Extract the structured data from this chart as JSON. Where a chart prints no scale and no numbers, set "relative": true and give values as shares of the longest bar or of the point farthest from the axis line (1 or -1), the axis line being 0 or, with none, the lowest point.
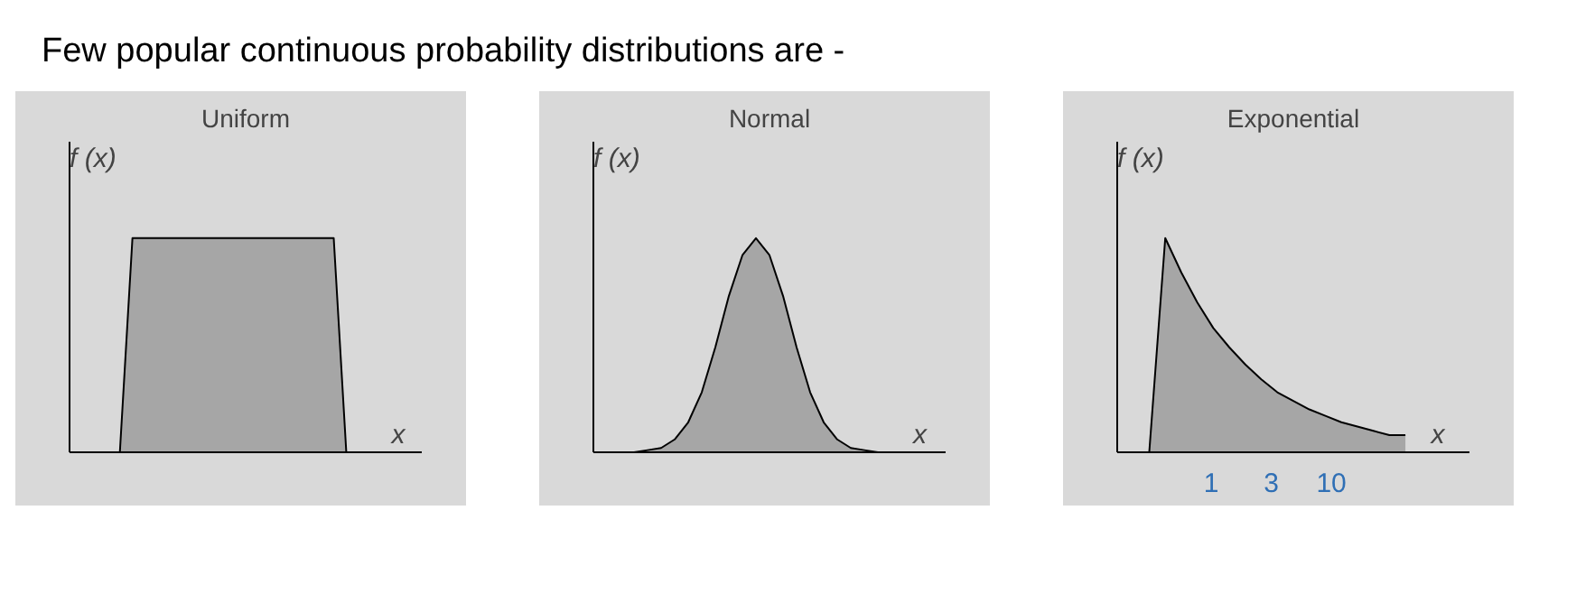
{
  "chart_data": [
    {
      "type": "area",
      "title": "Uniform",
      "xlabel": "x",
      "ylabel": "f (x)",
      "relative": true,
      "annotations": [
        "Few popular continuous probability distributions are -"
      ],
      "categories": [
        null,
        null,
        null,
        null,
        null,
        null,
        null,
        null,
        null,
        null,
        null,
        null,
        null,
        null,
        null,
        null,
        null,
        null,
        null,
        null,
        null,
        null,
        null
      ],
      "series": [
        {
          "color": "#a6a6a6",
          "values": [
            0,
            0,
            0,
            1,
            1,
            1,
            1,
            1,
            1,
            1,
            1,
            1,
            1,
            1,
            1,
            1,
            1,
            1,
            1,
            1,
            0,
            0,
            0
          ]
        }
      ]
    },
    {
      "type": "area",
      "title": "Normal",
      "xlabel": "x",
      "ylabel": "f (x)",
      "relative": true,
      "categories": [
        null,
        null,
        null,
        null,
        null,
        null,
        null,
        null,
        null,
        null,
        null,
        null,
        null,
        null,
        null,
        null,
        null,
        null,
        null,
        null,
        null
      ],
      "series": [
        {
          "color": "#a6a6a6",
          "values": [
            0,
            0,
            0.01,
            0.02,
            0.06,
            0.14,
            0.28,
            0.49,
            0.73,
            0.92,
            1,
            0.92,
            0.73,
            0.49,
            0.28,
            0.14,
            0.06,
            0.02,
            0.01,
            0,
            0
          ]
        }
      ]
    },
    {
      "type": "area",
      "title": "Exponential",
      "xlabel": "x",
      "ylabel": "f (x)",
      "relative": true,
      "annotations": [
        "1",
        "3",
        "10"
      ],
      "categories": [
        null,
        null,
        null,
        null,
        null,
        null,
        null,
        null,
        null,
        null,
        null,
        null,
        null,
        null,
        null,
        null,
        null
      ],
      "series": [
        {
          "color": "#a6a6a6",
          "values": [
            0,
            1,
            0.84,
            0.7,
            0.58,
            0.49,
            0.41,
            0.34,
            0.28,
            0.24,
            0.2,
            0.17,
            0.14,
            0.12,
            0.1,
            0.08,
            0.08
          ]
        }
      ]
    }
  ]
}
